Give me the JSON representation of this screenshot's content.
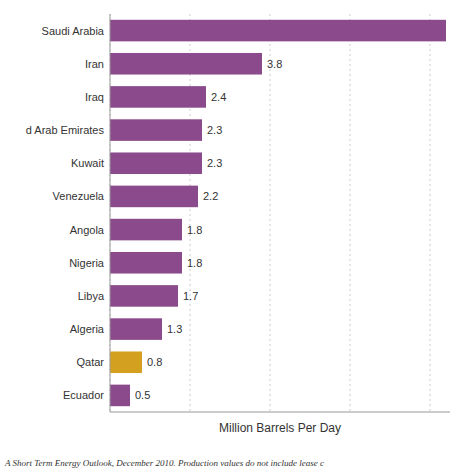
{
  "chart_data": {
    "type": "bar",
    "orientation": "horizontal",
    "categories": [
      "Saudi Arabia",
      "Iran",
      "Iraq",
      "d Arab Emirates",
      "Kuwait",
      "Venezuela",
      "Angola",
      "Nigeria",
      "Libya",
      "Algeria",
      "Qatar",
      "Ecuador"
    ],
    "values": [
      8.4,
      3.8,
      2.4,
      2.3,
      2.3,
      2.2,
      1.8,
      1.8,
      1.7,
      1.3,
      0.8,
      0.5
    ],
    "value_labels": [
      null,
      "3.8",
      "2.4",
      "2.3",
      "2.3",
      "2.2",
      "1.8",
      "1.8",
      "1.7",
      "1.3",
      "0.8",
      "0.5"
    ],
    "data_labels": true,
    "colors": [
      "#8b4a8b",
      "#8b4a8b",
      "#8b4a8b",
      "#8b4a8b",
      "#8b4a8b",
      "#8b4a8b",
      "#8b4a8b",
      "#8b4a8b",
      "#8b4a8b",
      "#8b4a8b",
      "#d4a020",
      "#8b4a8b"
    ],
    "x_label": "Million Barrels Per Day",
    "xlim": [
      0,
      8.5
    ],
    "xticks": [
      0,
      2,
      4,
      6,
      8
    ],
    "tick_labels": "y",
    "grid": true,
    "annotations": [
      "A Short Term Energy Outlook, December 2010. Production values do not include lease c"
    ]
  }
}
